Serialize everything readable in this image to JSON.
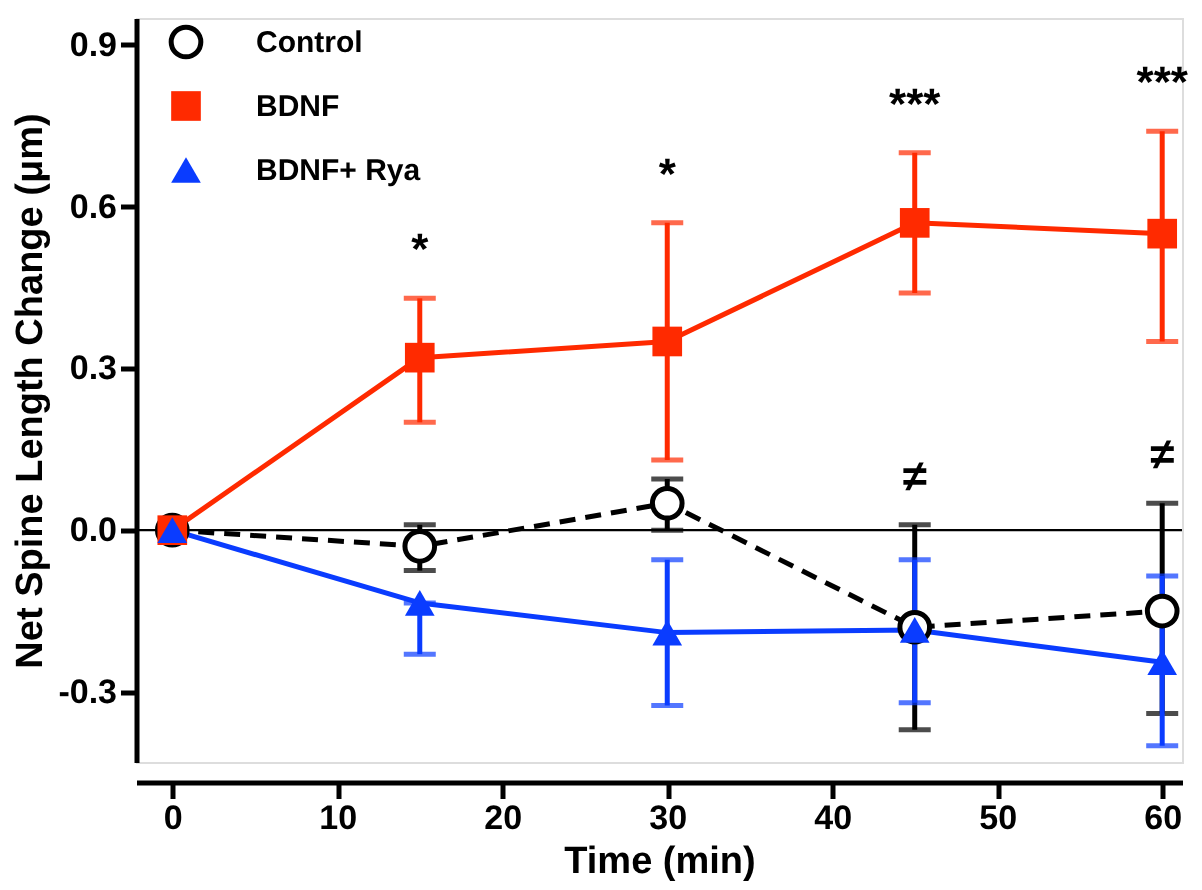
{
  "chart_data": {
    "type": "line",
    "xlabel": "Time (min)",
    "ylabel": "Net Spine Length Change (μm)",
    "x": [
      0,
      15,
      30,
      45,
      60
    ],
    "xlim": [
      -2.2,
      61.2
    ],
    "xticks": [
      0,
      10,
      20,
      30,
      40,
      50,
      60
    ],
    "ylim": [
      -0.43,
      0.95
    ],
    "yticks": [
      {
        "value": -0.3,
        "label": "-0.3"
      },
      {
        "value": 0,
        "label": "0.0"
      },
      {
        "value": 0.3,
        "label": "0.3"
      },
      {
        "value": 0.6,
        "label": "0.6"
      },
      {
        "value": 0.9,
        "label": "0.9"
      }
    ],
    "legend": "top left",
    "grid": false,
    "series": [
      {
        "name": "Control",
        "color": "#000000",
        "marker": "circle",
        "line_style": "dashed",
        "values": [
          0,
          -0.03,
          0.05,
          -0.18,
          -0.15
        ],
        "errors": [
          null,
          [
            -0.075,
            0.01
          ],
          [
            0.0,
            0.095
          ],
          [
            -0.37,
            0.01
          ],
          [
            -0.34,
            0.05
          ]
        ]
      },
      {
        "name": "BDNF",
        "color": "#ff2a00",
        "marker": "square",
        "line_style": "solid",
        "values": [
          0,
          0.32,
          0.35,
          0.57,
          0.55
        ],
        "errors": [
          null,
          [
            0.2,
            0.43
          ],
          [
            0.13,
            0.57
          ],
          [
            0.44,
            0.7
          ],
          [
            0.35,
            0.74
          ]
        ]
      },
      {
        "name": "BDNF+ Rya",
        "color": "#0a3cff",
        "marker": "triangle",
        "line_style": "solid",
        "values": [
          0,
          -0.135,
          -0.19,
          -0.185,
          -0.245
        ],
        "errors": [
          null,
          [
            -0.23,
            -0.135
          ],
          [
            -0.325,
            -0.055
          ],
          [
            -0.32,
            -0.055
          ],
          [
            -0.4,
            -0.085
          ]
        ]
      }
    ],
    "ref_lines": [
      {
        "axis": "y",
        "value": 0,
        "color": "#000000"
      }
    ],
    "annotations": [
      {
        "text": "*",
        "x": 15,
        "y": 0.43
      },
      {
        "text": "*",
        "x": 30,
        "y": 0.57
      },
      {
        "text": "***",
        "x": 45,
        "y": 0.7
      },
      {
        "text": "***",
        "x": 60,
        "y": 0.74
      },
      {
        "text": "≠",
        "x": 45,
        "y": 0.01
      },
      {
        "text": "≠",
        "x": 60,
        "y": 0.05
      }
    ]
  }
}
